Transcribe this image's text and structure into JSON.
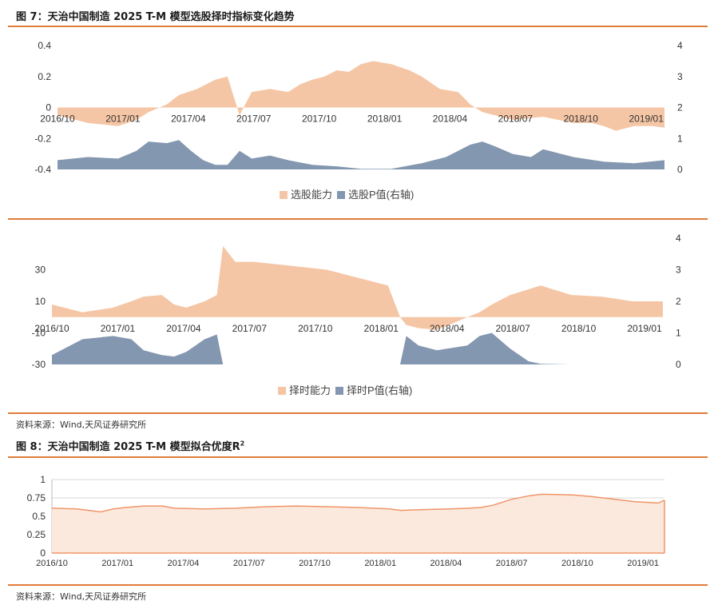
{
  "figure7": {
    "title": "图 7：天治中国制造 2025 T-M 模型选股择时指标变化趋势",
    "source": "资料来源：Wind,天风证券研究所"
  },
  "figure8": {
    "title_main": "图 8：天治中国制造 2025 T-M 模型拟合优度R",
    "title_sup": "2",
    "source": "资料来源：Wind,天风证券研究所"
  },
  "colors": {
    "accent": "#e07b39",
    "skill_fill": "#f5c6a5",
    "pvalue_fill": "#8497b0",
    "r2_fill": "#fbe9dd",
    "r2_line": "#f0956a",
    "grid": "#d9d9d9"
  },
  "chart_data": [
    {
      "type": "area",
      "id": "selection",
      "x_ticks": [
        "2016/10",
        "2017/01",
        "2017/04",
        "2017/07",
        "2017/10",
        "2018/01",
        "2018/04",
        "2018/07",
        "2018/10",
        "2019/01"
      ],
      "y_left_ticks": [
        "0.4",
        "0.2",
        "0",
        "-0.2",
        "-0.4"
      ],
      "y_right_ticks": [
        "4",
        "3",
        "2",
        "1",
        "0"
      ],
      "ylim_left": [
        -0.4,
        0.4
      ],
      "ylim_right": [
        0,
        4
      ],
      "series": [
        {
          "name": "选股能力",
          "axis": "left",
          "x": [
            0,
            0.05,
            0.1,
            0.13,
            0.15,
            0.18,
            0.2,
            0.23,
            0.26,
            0.28,
            0.3,
            0.32,
            0.35,
            0.38,
            0.4,
            0.42,
            0.44,
            0.46,
            0.48,
            0.5,
            0.52,
            0.55,
            0.58,
            0.6,
            0.63,
            0.66,
            0.68,
            0.7,
            0.75,
            0.8,
            0.85,
            0.88,
            0.9,
            0.92,
            0.95,
            0.98,
            1
          ],
          "values": [
            -0.05,
            -0.1,
            -0.12,
            -0.08,
            -0.03,
            0.02,
            0.08,
            0.12,
            0.18,
            0.2,
            -0.05,
            0.1,
            0.12,
            0.1,
            0.15,
            0.18,
            0.2,
            0.24,
            0.23,
            0.28,
            0.3,
            0.28,
            0.24,
            0.2,
            0.12,
            0.1,
            0.02,
            -0.03,
            -0.08,
            -0.06,
            -0.1,
            -0.1,
            -0.12,
            -0.15,
            -0.12,
            -0.12,
            -0.13
          ]
        },
        {
          "name": "选股P值(右轴)",
          "axis": "right",
          "x": [
            0,
            0.05,
            0.1,
            0.13,
            0.15,
            0.18,
            0.2,
            0.22,
            0.24,
            0.26,
            0.28,
            0.3,
            0.32,
            0.35,
            0.38,
            0.42,
            0.46,
            0.5,
            0.55,
            0.6,
            0.64,
            0.68,
            0.7,
            0.72,
            0.75,
            0.78,
            0.8,
            0.85,
            0.9,
            0.95,
            1
          ],
          "values": [
            0.3,
            0.4,
            0.35,
            0.6,
            0.9,
            0.85,
            0.95,
            0.6,
            0.3,
            0.15,
            0.15,
            0.6,
            0.35,
            0.45,
            0.3,
            0.15,
            0.1,
            0.02,
            0.02,
            0.2,
            0.4,
            0.8,
            0.9,
            0.75,
            0.5,
            0.4,
            0.65,
            0.4,
            0.25,
            0.2,
            0.3
          ]
        }
      ],
      "legend": "bottom"
    },
    {
      "type": "area",
      "id": "timing",
      "x_ticks": [
        "2016/10",
        "2017/01",
        "2017/04",
        "2017/07",
        "2017/10",
        "2018/01",
        "2018/04",
        "2018/07",
        "2018/10",
        "2019/01"
      ],
      "y_left_ticks": [
        "30",
        "10",
        "-10",
        "-30"
      ],
      "y_right_ticks": [
        "4",
        "3",
        "2",
        "1",
        "0"
      ],
      "ylim_left": [
        -30,
        50
      ],
      "ylim_right": [
        0,
        4
      ],
      "series": [
        {
          "name": "择时能力",
          "axis": "left",
          "x": [
            0,
            0.05,
            0.1,
            0.13,
            0.15,
            0.18,
            0.2,
            0.22,
            0.25,
            0.27,
            0.28,
            0.3,
            0.33,
            0.38,
            0.45,
            0.5,
            0.55,
            0.57,
            0.58,
            0.6,
            0.63,
            0.65,
            0.68,
            0.7,
            0.72,
            0.75,
            0.8,
            0.85,
            0.9,
            0.95,
            1
          ],
          "values": [
            8,
            3,
            6,
            10,
            13,
            14,
            8,
            6,
            10,
            14,
            45,
            35,
            35,
            33,
            30,
            25,
            20,
            0,
            -5,
            -7,
            -8,
            -5,
            0,
            3,
            8,
            14,
            20,
            14,
            13,
            10,
            10
          ]
        },
        {
          "name": "择时P值(右轴)",
          "axis": "right",
          "x": [
            0,
            0.05,
            0.1,
            0.13,
            0.15,
            0.18,
            0.2,
            0.22,
            0.25,
            0.27,
            0.28,
            0.3,
            0.35,
            0.5,
            0.55,
            0.57,
            0.58,
            0.6,
            0.63,
            0.68,
            0.7,
            0.72,
            0.75,
            0.78,
            0.8,
            0.85,
            1
          ],
          "values": [
            0.3,
            0.8,
            0.9,
            0.8,
            0.45,
            0.3,
            0.25,
            0.4,
            0.8,
            0.95,
            0,
            0,
            0,
            0,
            0,
            0,
            0.9,
            0.6,
            0.45,
            0.6,
            0.9,
            1.0,
            0.5,
            0.1,
            0.02,
            0,
            0
          ]
        }
      ],
      "legend": "bottom"
    },
    {
      "type": "area",
      "id": "r2",
      "x_ticks": [
        "2016/10",
        "2017/01",
        "2017/04",
        "2017/07",
        "2017/10",
        "2018/01",
        "2018/04",
        "2018/07",
        "2018/10",
        "2019/01"
      ],
      "y_ticks": [
        "1",
        "0.75",
        "0.5",
        "0.25",
        "0"
      ],
      "ylim": [
        0,
        1
      ],
      "grid": true,
      "series": [
        {
          "x": [
            0,
            0.04,
            0.06,
            0.08,
            0.1,
            0.12,
            0.15,
            0.18,
            0.2,
            0.25,
            0.3,
            0.35,
            0.4,
            0.45,
            0.5,
            0.55,
            0.57,
            0.6,
            0.65,
            0.68,
            0.7,
            0.72,
            0.75,
            0.78,
            0.8,
            0.85,
            0.88,
            0.9,
            0.95,
            0.99,
            1
          ],
          "values": [
            0.61,
            0.6,
            0.58,
            0.56,
            0.6,
            0.62,
            0.64,
            0.64,
            0.61,
            0.6,
            0.61,
            0.63,
            0.64,
            0.63,
            0.62,
            0.6,
            0.58,
            0.59,
            0.6,
            0.61,
            0.62,
            0.65,
            0.73,
            0.78,
            0.8,
            0.79,
            0.77,
            0.75,
            0.7,
            0.68,
            0.72
          ]
        }
      ]
    }
  ]
}
